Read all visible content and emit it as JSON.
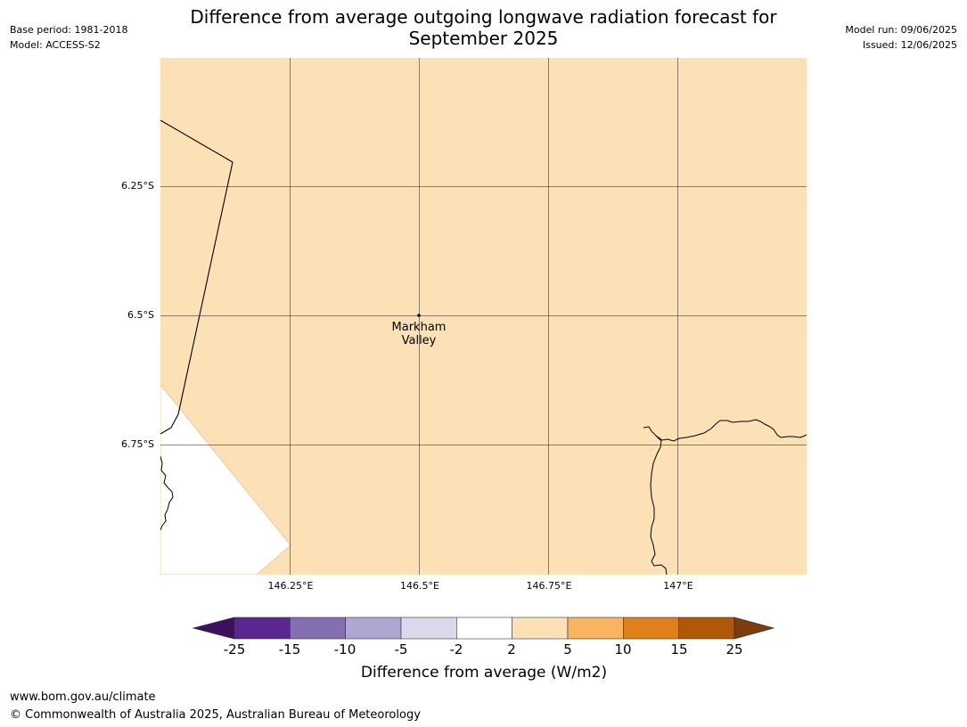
{
  "header": {
    "title_line1": "Difference from average outgoing longwave radiation forecast for",
    "title_line2": "September 2025",
    "base_period": "Base period: 1981-2018",
    "model": "Model: ACCESS-S2",
    "model_run": "Model run: 09/06/2025",
    "issued": "Issued: 12/06/2025"
  },
  "map": {
    "lat_ticks": [
      "6.25°S",
      "6.5°S",
      "6.75°S"
    ],
    "lon_ticks": [
      "146.25°E",
      "146.5°E",
      "146.75°E",
      "147°E"
    ],
    "place": {
      "name_line1": "Markham",
      "name_line2": "Valley",
      "lat": -6.5,
      "lon": 146.5
    },
    "fill_color": "#fce0b6",
    "no_data_color": "#ffffff"
  },
  "colorbar": {
    "label": "Difference from average (W/m2)",
    "ticks": [
      "-25",
      "-15",
      "-10",
      "-5",
      "-2",
      "2",
      "5",
      "10",
      "15",
      "25"
    ],
    "colors": [
      "#3d0f5e",
      "#5a2690",
      "#8470b0",
      "#b0a6d2",
      "#dad8ea",
      "#ffffff",
      "#fce0b6",
      "#f8b45e",
      "#e0801a",
      "#b05808",
      "#7e3c0a"
    ]
  },
  "footer": {
    "url": "www.bom.gov.au/climate",
    "copyright": "© Commonwealth of Australia 2025, Australian Bureau of Meteorology"
  }
}
